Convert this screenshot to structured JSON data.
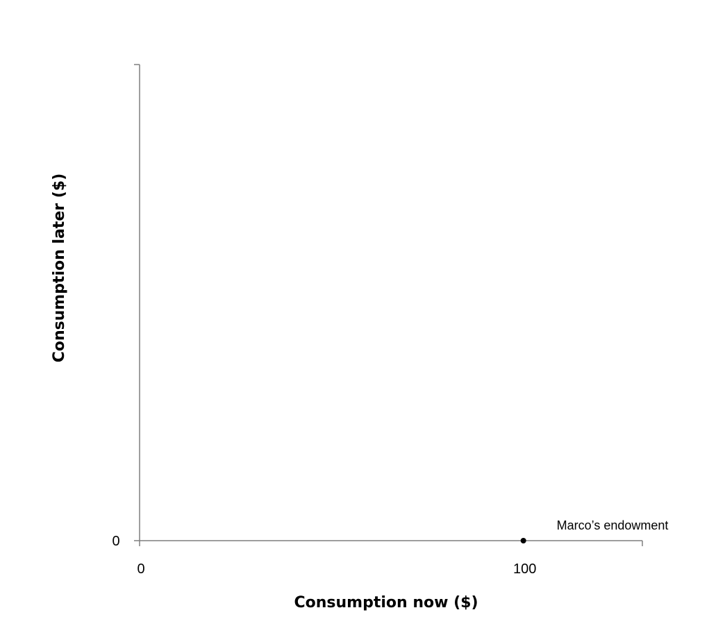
{
  "chart_data": {
    "type": "scatter",
    "title": "",
    "xlabel": "Consumption now ($)",
    "ylabel": "Consumption later ($)",
    "xlim": [
      0,
      131
    ],
    "ylim": [
      0,
      125
    ],
    "x_ticks": [
      {
        "value": 0,
        "label": "0"
      },
      {
        "value": 100,
        "label": "100"
      }
    ],
    "y_ticks": [
      {
        "value": 0,
        "label": "0"
      }
    ],
    "grid": false,
    "points": [
      {
        "x": 100,
        "y": 0,
        "label": "Marco’s endowment",
        "color": "#000000"
      }
    ]
  }
}
